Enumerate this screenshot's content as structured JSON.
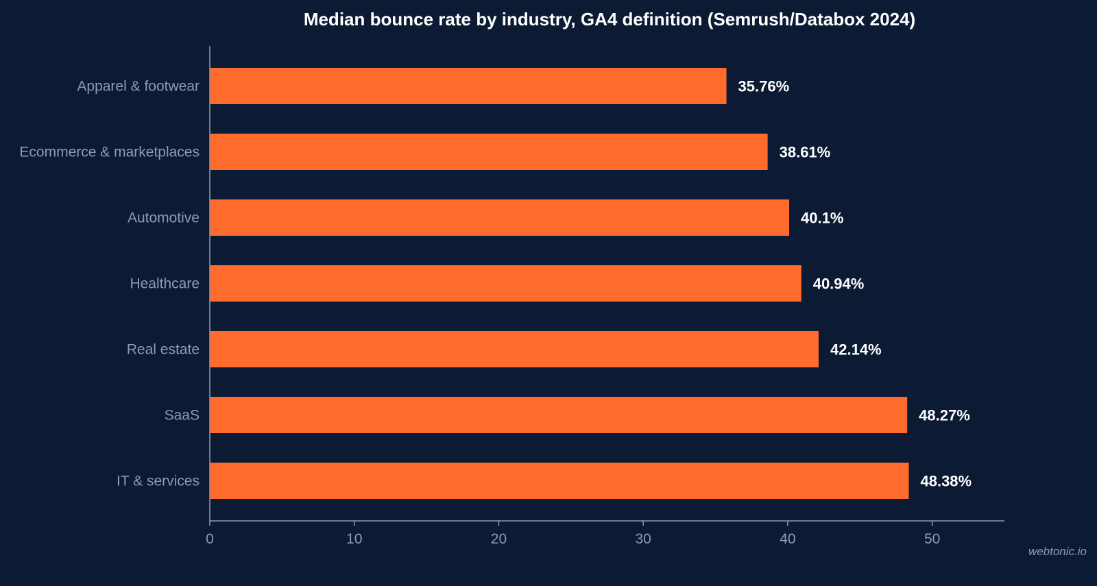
{
  "chart_data": {
    "type": "bar",
    "orientation": "horizontal",
    "title": "Median bounce rate by industry, GA4 definition (Semrush/Databox 2024)",
    "xlabel": "",
    "ylabel": "",
    "categories": [
      "Apparel & footwear",
      "Ecommerce & marketplaces",
      "Automotive",
      "Healthcare",
      "Real estate",
      "SaaS",
      "IT & services"
    ],
    "values": [
      35.76,
      38.61,
      40.1,
      40.94,
      42.14,
      48.27,
      48.38
    ],
    "value_labels": [
      "35.76%",
      "38.61%",
      "40.1%",
      "40.94%",
      "42.14%",
      "48.27%",
      "48.38%"
    ],
    "xlim": [
      0,
      55
    ],
    "x_ticks": [
      0,
      10,
      20,
      30,
      40,
      50
    ],
    "x_tick_labels": [
      "0",
      "10",
      "20",
      "30",
      "40",
      "50"
    ],
    "grid": false,
    "legend": "none"
  },
  "colors": {
    "background": "#0c1b33",
    "bar": "#ff6b2c",
    "axis": "#8d9bb3",
    "text": "#ffffff",
    "muted_text": "#8d9bb3"
  },
  "watermark": "webtonic.io"
}
